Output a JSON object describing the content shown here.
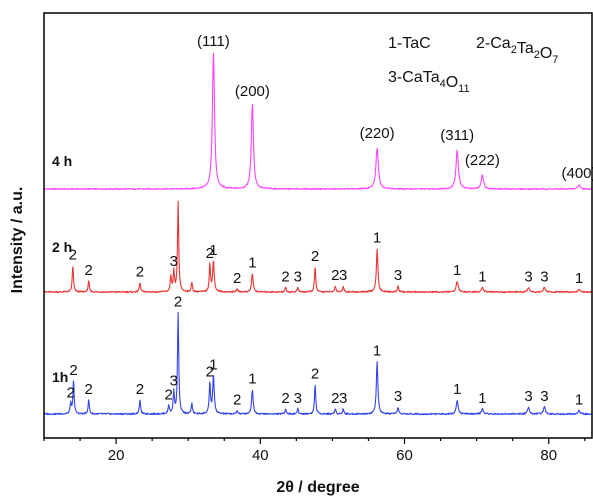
{
  "chart_data": {
    "type": "line",
    "xlabel": "2θ / degree",
    "ylabel": "Intensity / a.u.",
    "xlim": [
      10,
      86
    ],
    "x_ticks": [
      "20",
      "40",
      "60",
      "80"
    ],
    "x_tick_values": [
      20,
      40,
      60,
      80
    ],
    "legend": [
      {
        "num": "1",
        "sep": "-",
        "main": "TaC",
        "parts": []
      },
      {
        "num": "2",
        "sep": "-",
        "main": "",
        "parts": [
          [
            "Ca",
            "2"
          ],
          [
            "Ta",
            "2"
          ],
          [
            "O",
            "7"
          ]
        ]
      },
      {
        "num": "3",
        "sep": "-",
        "main": "",
        "parts": [
          [
            "CaTa",
            "4"
          ],
          [
            "O",
            "11"
          ]
        ]
      }
    ],
    "series": [
      {
        "name": "4 h",
        "color": "#ff44ff",
        "baseline": 0,
        "peaks": [
          {
            "x": 33.5,
            "h": 100,
            "w": 0.35,
            "label": "(111)"
          },
          {
            "x": 38.9,
            "h": 62,
            "w": 0.35,
            "label": "(200)"
          },
          {
            "x": 56.2,
            "h": 30,
            "w": 0.4,
            "label": "(220)"
          },
          {
            "x": 67.3,
            "h": 28,
            "w": 0.4,
            "label": "(311)"
          },
          {
            "x": 70.8,
            "h": 10,
            "w": 0.4,
            "label": "(222)"
          },
          {
            "x": 84.2,
            "h": 3,
            "w": 0.4,
            "label": "(400)"
          }
        ]
      },
      {
        "name": "2 h",
        "color": "#ee3333",
        "baseline": 0,
        "peaks": [
          {
            "x": 14.0,
            "h": 17,
            "w": 0.2,
            "label": "2"
          },
          {
            "x": 16.2,
            "h": 7,
            "w": 0.2,
            "label": "2"
          },
          {
            "x": 23.3,
            "h": 6,
            "w": 0.2,
            "label": "2"
          },
          {
            "x": 27.6,
            "h": 10,
            "w": 0.2,
            "label": ""
          },
          {
            "x": 28.0,
            "h": 13,
            "w": 0.2,
            "label": "3"
          },
          {
            "x": 28.6,
            "h": 58,
            "w": 0.2,
            "label": ""
          },
          {
            "x": 30.5,
            "h": 6,
            "w": 0.2,
            "label": ""
          },
          {
            "x": 33.0,
            "h": 18,
            "w": 0.2,
            "label": "2"
          },
          {
            "x": 33.5,
            "h": 20,
            "w": 0.25,
            "label": "1"
          },
          {
            "x": 36.8,
            "h": 2,
            "w": 0.2,
            "label": "2"
          },
          {
            "x": 38.9,
            "h": 12,
            "w": 0.25,
            "label": "1"
          },
          {
            "x": 43.5,
            "h": 3,
            "w": 0.2,
            "label": "2"
          },
          {
            "x": 45.2,
            "h": 3,
            "w": 0.2,
            "label": "3"
          },
          {
            "x": 47.6,
            "h": 16,
            "w": 0.2,
            "label": "2"
          },
          {
            "x": 50.4,
            "h": 4,
            "w": 0.2,
            "label": "2"
          },
          {
            "x": 51.5,
            "h": 4,
            "w": 0.2,
            "label": "3"
          },
          {
            "x": 56.2,
            "h": 28,
            "w": 0.25,
            "label": "1"
          },
          {
            "x": 59.1,
            "h": 4,
            "w": 0.2,
            "label": "3"
          },
          {
            "x": 67.3,
            "h": 7,
            "w": 0.3,
            "label": "1"
          },
          {
            "x": 70.8,
            "h": 3,
            "w": 0.3,
            "label": "1"
          },
          {
            "x": 77.2,
            "h": 3,
            "w": 0.3,
            "label": "3"
          },
          {
            "x": 79.4,
            "h": 3,
            "w": 0.3,
            "label": "3"
          },
          {
            "x": 84.2,
            "h": 2,
            "w": 0.3,
            "label": "1"
          }
        ]
      },
      {
        "name": "1h",
        "color": "#3344ee",
        "baseline": 0,
        "peaks": [
          {
            "x": 13.7,
            "h": 6,
            "w": 0.2,
            "label": "2"
          },
          {
            "x": 14.1,
            "h": 19,
            "w": 0.2,
            "label": "2"
          },
          {
            "x": 16.2,
            "h": 8,
            "w": 0.2,
            "label": "2"
          },
          {
            "x": 23.3,
            "h": 8,
            "w": 0.2,
            "label": "2"
          },
          {
            "x": 27.3,
            "h": 5,
            "w": 0.2,
            "label": "2"
          },
          {
            "x": 28.0,
            "h": 13,
            "w": 0.2,
            "label": "3"
          },
          {
            "x": 28.6,
            "h": 58,
            "w": 0.2,
            "label": "2"
          },
          {
            "x": 30.5,
            "h": 6,
            "w": 0.2,
            "label": ""
          },
          {
            "x": 33.0,
            "h": 18,
            "w": 0.2,
            "label": "2"
          },
          {
            "x": 33.5,
            "h": 22,
            "w": 0.25,
            "label": "1"
          },
          {
            "x": 36.8,
            "h": 2,
            "w": 0.2,
            "label": "2"
          },
          {
            "x": 38.9,
            "h": 14,
            "w": 0.25,
            "label": "1"
          },
          {
            "x": 43.5,
            "h": 3,
            "w": 0.2,
            "label": "2"
          },
          {
            "x": 45.2,
            "h": 3,
            "w": 0.2,
            "label": "3"
          },
          {
            "x": 47.6,
            "h": 17,
            "w": 0.2,
            "label": "2"
          },
          {
            "x": 50.4,
            "h": 3,
            "w": 0.2,
            "label": "2"
          },
          {
            "x": 51.5,
            "h": 3,
            "w": 0.2,
            "label": "3"
          },
          {
            "x": 56.2,
            "h": 30,
            "w": 0.25,
            "label": "1"
          },
          {
            "x": 59.1,
            "h": 4,
            "w": 0.2,
            "label": "3"
          },
          {
            "x": 67.3,
            "h": 8,
            "w": 0.3,
            "label": "1"
          },
          {
            "x": 70.8,
            "h": 3,
            "w": 0.3,
            "label": "1"
          },
          {
            "x": 77.2,
            "h": 4,
            "w": 0.3,
            "label": "3"
          },
          {
            "x": 79.4,
            "h": 4,
            "w": 0.3,
            "label": "3"
          },
          {
            "x": 84.2,
            "h": 2,
            "w": 0.3,
            "label": "1"
          }
        ]
      }
    ]
  }
}
